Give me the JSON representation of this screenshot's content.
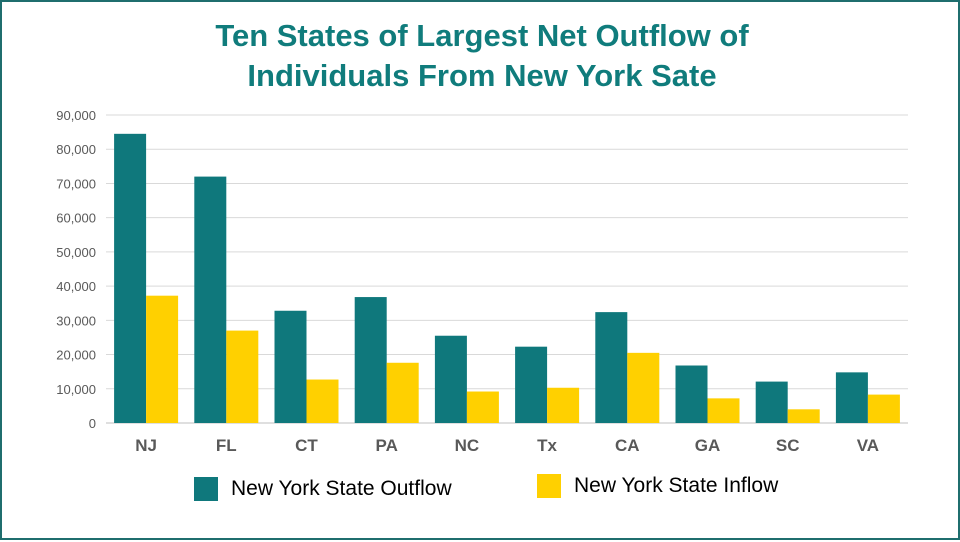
{
  "title_line1": "Ten States of Largest Net Outflow of",
  "title_line2": "Individuals From New York Sate",
  "colors": {
    "title": "#107c7c",
    "outflow": "#0f787c",
    "inflow": "#ffd000",
    "border": "#1f6e6e",
    "grid": "#d9d9d9"
  },
  "chart_data": {
    "type": "bar",
    "title": "Ten States of Largest Net Outflow of Individuals From New York Sate",
    "xlabel": "",
    "ylabel": "",
    "categories": [
      "NJ",
      "FL",
      "CT",
      "PA",
      "NC",
      "Tx",
      "CA",
      "GA",
      "SC",
      "VA"
    ],
    "series": [
      {
        "name": "New York State Outflow",
        "values": [
          84500,
          72000,
          32800,
          36800,
          25500,
          22300,
          32400,
          16800,
          12100,
          14800
        ]
      },
      {
        "name": "New York State Inflow",
        "values": [
          37200,
          27000,
          12700,
          17600,
          9200,
          10300,
          20500,
          7200,
          4000,
          8300
        ]
      }
    ],
    "ylim": [
      0,
      90000
    ],
    "yticks": [
      0,
      10000,
      20000,
      30000,
      40000,
      50000,
      60000,
      70000,
      80000,
      90000
    ],
    "ytick_labels": [
      "0",
      "10,000",
      "20,000",
      "30,000",
      "40,000",
      "50,000",
      "60,000",
      "70,000",
      "80,000",
      "90,000"
    ],
    "grid": true,
    "legend_position": "bottom"
  }
}
